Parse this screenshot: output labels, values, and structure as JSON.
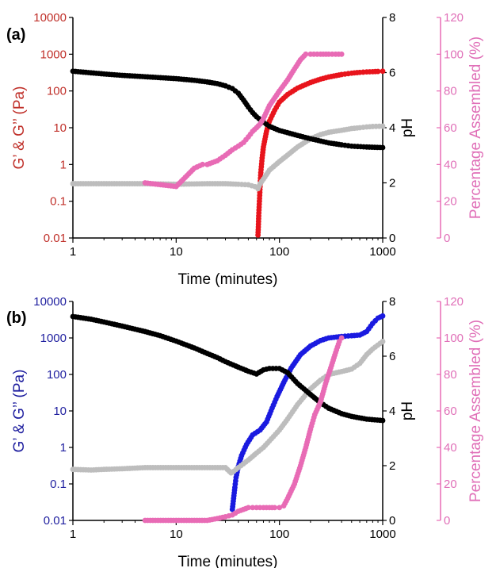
{
  "colors": {
    "axis_black": "#000000",
    "red": "#e8141c",
    "blue": "#1a1ae0",
    "gray": "#bdbdbd",
    "pink": "#e86bb5",
    "red_axis_text": "#c0302a",
    "blue_axis_text": "#1f1f9f",
    "pink_axis_text": "#e070b8"
  },
  "chart_data": [
    {
      "panel_label": "(a)",
      "type": "scatter",
      "xlabel": "Time (minutes)",
      "ylabel_left": "G’ & G’’ (Pa)",
      "ylabel_right1": "pH",
      "ylabel_right2": "Percentage Assembled (%)",
      "xscale": "log",
      "xlim": [
        1,
        1000
      ],
      "ylim_left": [
        0.01,
        10000
      ],
      "ylim_right1": [
        0,
        8
      ],
      "ylim_right2": [
        0,
        120
      ],
      "x_ticks": [
        "1",
        "10",
        "100",
        "1000"
      ],
      "y_left_ticks": [
        "0.01",
        "0.1",
        "1",
        "10",
        "100",
        "1000",
        "10000"
      ],
      "y_right1_ticks": [
        "0",
        "2",
        "4",
        "6",
        "8"
      ],
      "y_right2_ticks": [
        "0",
        "20",
        "40",
        "60",
        "80",
        "100",
        "120"
      ],
      "left_axis_color": "#c0302a",
      "series": [
        {
          "axis": "left",
          "color": "#e8141c",
          "points": [
            [
              62,
              0.012
            ],
            [
              62.5,
              0.02
            ],
            [
              63,
              0.04
            ],
            [
              64,
              0.1
            ],
            [
              65,
              0.25
            ],
            [
              66,
              0.6
            ],
            [
              68,
              1.5
            ],
            [
              70,
              3
            ],
            [
              75,
              8
            ],
            [
              80,
              15
            ],
            [
              90,
              30
            ],
            [
              100,
              50
            ],
            [
              120,
              80
            ],
            [
              150,
              120
            ],
            [
              200,
              170
            ],
            [
              250,
              210
            ],
            [
              300,
              240
            ],
            [
              400,
              280
            ],
            [
              500,
              305
            ],
            [
              600,
              320
            ],
            [
              700,
              330
            ],
            [
              800,
              335
            ],
            [
              900,
              340
            ],
            [
              1000,
              345
            ]
          ]
        },
        {
          "axis": "left",
          "color": "#bdbdbd",
          "points": [
            [
              1,
              0.3
            ],
            [
              2,
              0.3
            ],
            [
              5,
              0.3
            ],
            [
              10,
              0.29
            ],
            [
              20,
              0.3
            ],
            [
              30,
              0.3
            ],
            [
              40,
              0.29
            ],
            [
              50,
              0.28
            ],
            [
              58,
              0.25
            ],
            [
              62,
              0.22
            ],
            [
              65,
              0.3
            ],
            [
              70,
              0.4
            ],
            [
              80,
              0.7
            ],
            [
              100,
              1.2
            ],
            [
              120,
              1.8
            ],
            [
              150,
              3
            ],
            [
              200,
              5
            ],
            [
              250,
              6.5
            ],
            [
              300,
              7.5
            ],
            [
              400,
              8.5
            ],
            [
              500,
              9.5
            ],
            [
              600,
              10
            ],
            [
              700,
              10.5
            ],
            [
              800,
              10.8
            ],
            [
              1000,
              11
            ]
          ]
        },
        {
          "axis": "right1",
          "color": "#000000",
          "points": [
            [
              1,
              6.05
            ],
            [
              2,
              5.95
            ],
            [
              3,
              5.9
            ],
            [
              5,
              5.85
            ],
            [
              10,
              5.78
            ],
            [
              15,
              5.72
            ],
            [
              20,
              5.66
            ],
            [
              25,
              5.6
            ],
            [
              30,
              5.52
            ],
            [
              35,
              5.42
            ],
            [
              40,
              5.25
            ],
            [
              45,
              5.0
            ],
            [
              50,
              4.75
            ],
            [
              55,
              4.55
            ],
            [
              60,
              4.4
            ],
            [
              70,
              4.2
            ],
            [
              80,
              4.05
            ],
            [
              100,
              3.9
            ],
            [
              150,
              3.72
            ],
            [
              200,
              3.6
            ],
            [
              300,
              3.45
            ],
            [
              400,
              3.38
            ],
            [
              500,
              3.33
            ],
            [
              700,
              3.3
            ],
            [
              1000,
              3.28
            ]
          ]
        },
        {
          "axis": "right2",
          "color": "#e86bb5",
          "points": [
            [
              5,
              30
            ],
            [
              10,
              28
            ],
            [
              15,
              38
            ],
            [
              18,
              40
            ],
            [
              20,
              40
            ],
            [
              25,
              42
            ],
            [
              30,
              45
            ],
            [
              35,
              48
            ],
            [
              40,
              50
            ],
            [
              45,
              52
            ],
            [
              50,
              55
            ],
            [
              55,
              58
            ],
            [
              60,
              60
            ],
            [
              65,
              62
            ],
            [
              70,
              65
            ],
            [
              80,
              72
            ],
            [
              100,
              80
            ],
            [
              120,
              86
            ],
            [
              140,
              92
            ],
            [
              160,
              97
            ],
            [
              180,
              100
            ],
            [
              200,
              100
            ],
            [
              250,
              100
            ],
            [
              300,
              100
            ],
            [
              350,
              100
            ],
            [
              400,
              100
            ]
          ]
        }
      ]
    },
    {
      "panel_label": "(b)",
      "type": "scatter",
      "xlabel": "Time (minutes)",
      "ylabel_left": "G’ & G’’ (Pa)",
      "ylabel_right1": "pH",
      "ylabel_right2": "Percentage Assembled (%)",
      "xscale": "log",
      "xlim": [
        1,
        1000
      ],
      "ylim_left": [
        0.01,
        10000
      ],
      "ylim_right1": [
        0,
        8
      ],
      "ylim_right2": [
        0,
        120
      ],
      "x_ticks": [
        "1",
        "10",
        "100",
        "1000"
      ],
      "y_left_ticks": [
        "0.01",
        "0.1",
        "1",
        "10",
        "100",
        "1000",
        "10000"
      ],
      "y_right1_ticks": [
        "0",
        "2",
        "4",
        "6",
        "8"
      ],
      "y_right2_ticks": [
        "0",
        "20",
        "40",
        "60",
        "80",
        "100",
        "120"
      ],
      "left_axis_color": "#1f1f9f",
      "series": [
        {
          "axis": "left",
          "color": "#1a1ae0",
          "points": [
            [
              35,
              0.02
            ],
            [
              36,
              0.04
            ],
            [
              37,
              0.08
            ],
            [
              38,
              0.15
            ],
            [
              40,
              0.3
            ],
            [
              43,
              0.6
            ],
            [
              48,
              1.2
            ],
            [
              55,
              2.2
            ],
            [
              65,
              3
            ],
            [
              75,
              5
            ],
            [
              85,
              12
            ],
            [
              95,
              25
            ],
            [
              110,
              60
            ],
            [
              130,
              150
            ],
            [
              160,
              350
            ],
            [
              200,
              600
            ],
            [
              250,
              850
            ],
            [
              300,
              1000
            ],
            [
              400,
              1100
            ],
            [
              500,
              1150
            ],
            [
              600,
              1200
            ],
            [
              700,
              1500
            ],
            [
              800,
              2500
            ],
            [
              900,
              3500
            ],
            [
              1000,
              4000
            ]
          ]
        },
        {
          "axis": "left",
          "color": "#bdbdbd",
          "points": [
            [
              1,
              0.25
            ],
            [
              1.5,
              0.24
            ],
            [
              2,
              0.25
            ],
            [
              3,
              0.26
            ],
            [
              5,
              0.28
            ],
            [
              10,
              0.28
            ],
            [
              20,
              0.28
            ],
            [
              30,
              0.28
            ],
            [
              34,
              0.2
            ],
            [
              36,
              0.22
            ],
            [
              40,
              0.28
            ],
            [
              50,
              0.45
            ],
            [
              60,
              0.7
            ],
            [
              70,
              1
            ],
            [
              80,
              1.5
            ],
            [
              100,
              3
            ],
            [
              120,
              6
            ],
            [
              150,
              15
            ],
            [
              200,
              40
            ],
            [
              250,
              70
            ],
            [
              300,
              100
            ],
            [
              400,
              120
            ],
            [
              500,
              140
            ],
            [
              600,
              200
            ],
            [
              700,
              350
            ],
            [
              800,
              500
            ],
            [
              1000,
              800
            ]
          ]
        },
        {
          "axis": "right1",
          "color": "#000000",
          "points": [
            [
              1,
              7.45
            ],
            [
              1.5,
              7.35
            ],
            [
              2,
              7.25
            ],
            [
              3,
              7.1
            ],
            [
              5,
              6.9
            ],
            [
              7,
              6.75
            ],
            [
              10,
              6.55
            ],
            [
              15,
              6.3
            ],
            [
              20,
              6.1
            ],
            [
              25,
              5.95
            ],
            [
              30,
              5.8
            ],
            [
              40,
              5.6
            ],
            [
              50,
              5.45
            ],
            [
              60,
              5.35
            ],
            [
              70,
              5.5
            ],
            [
              80,
              5.55
            ],
            [
              100,
              5.55
            ],
            [
              120,
              5.4
            ],
            [
              150,
              5.0
            ],
            [
              200,
              4.6
            ],
            [
              250,
              4.3
            ],
            [
              300,
              4.1
            ],
            [
              400,
              3.9
            ],
            [
              500,
              3.8
            ],
            [
              700,
              3.7
            ],
            [
              1000,
              3.65
            ]
          ]
        },
        {
          "axis": "right2",
          "color": "#e86bb5",
          "points": [
            [
              5,
              0
            ],
            [
              10,
              0
            ],
            [
              15,
              0
            ],
            [
              20,
              0
            ],
            [
              25,
              1
            ],
            [
              30,
              2
            ],
            [
              35,
              3
            ],
            [
              40,
              5
            ],
            [
              50,
              7
            ],
            [
              55,
              7
            ],
            [
              60,
              7
            ],
            [
              70,
              7
            ],
            [
              80,
              7
            ],
            [
              90,
              7
            ],
            [
              100,
              7
            ],
            [
              110,
              8
            ],
            [
              120,
              12
            ],
            [
              140,
              20
            ],
            [
              160,
              30
            ],
            [
              180,
              40
            ],
            [
              200,
              50
            ],
            [
              220,
              58
            ],
            [
              250,
              65
            ],
            [
              280,
              75
            ],
            [
              320,
              85
            ],
            [
              350,
              92
            ],
            [
              380,
              98
            ],
            [
              400,
              100
            ]
          ]
        }
      ]
    }
  ]
}
